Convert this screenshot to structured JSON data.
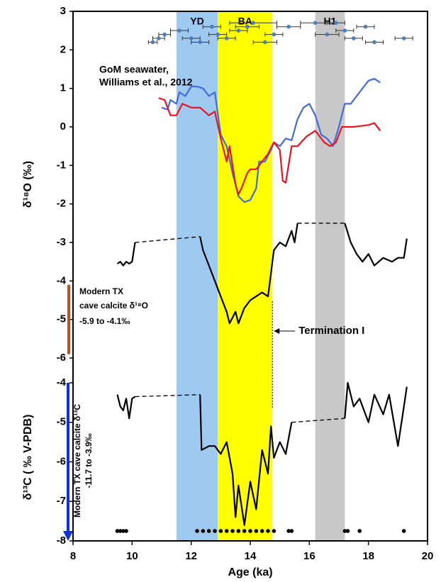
{
  "chart_data": [
    {
      "type": "line",
      "ylabel": "δ¹⁸O (‰)",
      "ylim": [
        -6,
        3
      ],
      "yticks": [
        3,
        2,
        1,
        0,
        -1,
        -2,
        -3,
        -4,
        -5,
        -6
      ],
      "xlim": [
        8,
        20
      ],
      "bands": [
        {
          "label": "YD",
          "start": 11.5,
          "end": 12.9,
          "color": "#9ec9f0"
        },
        {
          "label": "BA",
          "start": 12.9,
          "end": 14.75,
          "color": "#ffff00"
        },
        {
          "label": "H1",
          "start": 16.2,
          "end": 17.2,
          "color": "#c8c8c8"
        }
      ],
      "annotations": [
        "GoM seawater,",
        "Williams et al., 2012"
      ],
      "termination": {
        "label": "Termination I",
        "x": 14.75
      },
      "modern_range": {
        "label": [
          "Modern TX",
          "cave calcite δ¹⁸O",
          "-5.9 to -4.1‰"
        ],
        "values": [
          -5.9,
          -4.1
        ],
        "color": "#c0501e"
      },
      "series": [
        {
          "type": "scatter",
          "color": "#4a7fc0",
          "x": [
            10.7,
            10.9,
            11.1,
            11.6,
            12.0,
            12.3,
            12.7,
            12.9,
            13.2,
            13.6,
            13.9,
            14.1,
            14.5,
            14.8,
            15.3,
            16.2,
            16.6,
            16.9,
            17.2,
            17.5,
            17.9,
            18.2,
            19.2
          ],
          "values": [
            2.2,
            2.3,
            2.4,
            2.5,
            2.3,
            2.2,
            2.6,
            2.4,
            2.3,
            2.5,
            2.6,
            2.7,
            2.2,
            2.4,
            2.6,
            2.7,
            2.4,
            2.7,
            2.5,
            2.3,
            2.6,
            2.2,
            2.3
          ],
          "xerr": [
            0.15,
            0.2,
            0.2,
            0.3,
            0.3,
            0.3,
            0.3,
            0.3,
            0.3,
            0.3,
            0.4,
            0.8,
            0.4,
            0.3,
            0.4,
            0.5,
            0.4,
            0.3,
            0.3,
            0.3,
            0.3,
            0.3,
            0.3
          ]
        },
        {
          "type": "line",
          "color": "#4169e1",
          "x": [
            11.0,
            11.2,
            11.3,
            11.5,
            11.6,
            11.8,
            12.0,
            12.2,
            12.4,
            12.6,
            12.8,
            13.0,
            13.2,
            13.4,
            13.6,
            13.8,
            14.0,
            14.2,
            14.3,
            14.5,
            14.7,
            14.8,
            15.0,
            15.2,
            15.4,
            15.6,
            15.8,
            16.0,
            16.2,
            16.4,
            16.6,
            16.8,
            17.0,
            17.2,
            17.4,
            17.6,
            17.8,
            18.0,
            18.2,
            18.4
          ],
          "values": [
            0.5,
            0.45,
            0.7,
            0.6,
            0.9,
            0.8,
            1.05,
            1.05,
            1.0,
            0.8,
            0.9,
            -0.2,
            -0.5,
            -1.2,
            -1.8,
            -1.95,
            -1.9,
            -1.6,
            -0.9,
            -0.9,
            -0.6,
            -0.4,
            -0.5,
            -0.3,
            -0.35,
            0.2,
            0.5,
            0.6,
            0.3,
            -0.2,
            -0.3,
            -0.5,
            0.0,
            0.6,
            0.6,
            0.8,
            1.0,
            1.2,
            1.25,
            1.15
          ]
        },
        {
          "type": "line",
          "color": "#e8141e",
          "x": [
            10.9,
            11.1,
            11.3,
            11.5,
            11.7,
            12.0,
            12.3,
            12.6,
            12.8,
            13.0,
            13.2,
            13.3,
            13.5,
            13.6,
            13.7,
            13.9,
            14.0,
            14.2,
            14.4,
            14.6,
            14.8,
            15.0,
            15.1,
            15.2,
            15.4,
            15.6,
            15.9,
            16.2,
            16.5,
            16.7,
            16.9,
            17.1,
            17.5,
            18.0,
            18.2,
            18.4
          ],
          "values": [
            0.75,
            0.7,
            0.3,
            0.3,
            0.6,
            0.5,
            0.5,
            0.3,
            0.4,
            -0.3,
            -0.9,
            -0.5,
            -1.5,
            -1.75,
            -1.6,
            -1.2,
            -1.1,
            -1.1,
            -0.9,
            -0.7,
            -0.4,
            -0.6,
            -1.4,
            -1.45,
            -0.5,
            -0.5,
            -0.25,
            -0.1,
            -0.4,
            -0.5,
            -0.4,
            0.0,
            0.0,
            0.05,
            0.1,
            -0.1
          ]
        },
        {
          "type": "line",
          "color": "#000000",
          "connect_gaps": true,
          "x": [
            9.5,
            9.6,
            9.7,
            9.8,
            9.9,
            10.0,
            10.1,
            null,
            12.3,
            12.4,
            12.6,
            12.8,
            13.0,
            13.2,
            13.3,
            13.5,
            13.6,
            13.8,
            14.0,
            14.2,
            14.4,
            14.6,
            14.7,
            14.8,
            15.0,
            15.2,
            15.4,
            15.5,
            15.6,
            null,
            17.2,
            17.4,
            17.6,
            17.8,
            18.0,
            18.2,
            18.5,
            18.8,
            19.0,
            19.2,
            19.3
          ],
          "values": [
            -3.55,
            -3.5,
            -3.6,
            -3.5,
            -3.55,
            -3.5,
            -3.0,
            null,
            -2.85,
            -3.2,
            -3.6,
            -4.0,
            -4.4,
            -4.8,
            -5.1,
            -4.8,
            -5.1,
            -4.7,
            -4.5,
            -4.4,
            -4.3,
            -4.4,
            -3.8,
            -3.2,
            -3.0,
            -3.1,
            -2.7,
            -3.0,
            -2.5,
            null,
            -2.5,
            -3.0,
            -3.3,
            -3.5,
            -3.3,
            -3.6,
            -3.4,
            -3.5,
            -3.4,
            -3.4,
            -2.9
          ]
        }
      ]
    },
    {
      "type": "line",
      "ylabel": "δ¹³C ( ‰ V-PDB)",
      "xlabel": "Age (ka)",
      "ylim": [
        -8,
        -4
      ],
      "yticks": [
        -4,
        -5,
        -6,
        -7,
        -8
      ],
      "xlim": [
        8,
        20
      ],
      "xticks": [
        8,
        10,
        12,
        14,
        16,
        18,
        20
      ],
      "modern_range": {
        "label": [
          "Modern TX  cave calcite δ¹³C",
          "-11.7 to -3.9‰"
        ],
        "values": [
          -8,
          -4
        ],
        "color": "#1030e0"
      },
      "series": [
        {
          "type": "line",
          "color": "#000000",
          "connect_gaps": true,
          "x": [
            9.5,
            9.6,
            9.7,
            9.8,
            9.9,
            10.0,
            10.1,
            null,
            12.3,
            12.35,
            12.6,
            12.8,
            13.0,
            13.2,
            13.4,
            13.5,
            13.6,
            13.8,
            14.0,
            14.2,
            14.4,
            14.6,
            14.7,
            14.8,
            15.0,
            15.2,
            15.4,
            null,
            17.2,
            17.3,
            17.5,
            17.7,
            18.0,
            18.2,
            18.5,
            18.7,
            19.0,
            19.2,
            19.3
          ],
          "values": [
            -4.3,
            -4.6,
            -4.7,
            -4.4,
            -4.9,
            -4.4,
            -4.35,
            null,
            -4.3,
            -5.7,
            -5.6,
            -5.6,
            -5.8,
            -5.5,
            -6.3,
            -7.4,
            -6.6,
            -7.6,
            -6.5,
            -7.2,
            -5.7,
            -6.3,
            -5.1,
            -5.9,
            -5.5,
            -5.8,
            -5.0,
            null,
            -4.9,
            -4.0,
            -4.6,
            -4.4,
            -5.0,
            -4.3,
            -4.8,
            -4.3,
            -5.6,
            -4.6,
            -4.1
          ]
        },
        {
          "type": "scatter",
          "color": "#000000",
          "x": [
            9.5,
            9.6,
            9.7,
            9.8,
            12.2,
            12.4,
            12.6,
            12.8,
            13.0,
            13.2,
            13.4,
            13.6,
            13.8,
            14.0,
            14.2,
            14.4,
            14.6,
            14.8,
            15.3,
            15.4,
            17.2,
            17.3,
            17.7,
            19.2
          ],
          "values": [
            -7.75,
            -7.75,
            -7.75,
            -7.75,
            -7.75,
            -7.75,
            -7.75,
            -7.75,
            -7.75,
            -7.75,
            -7.75,
            -7.75,
            -7.75,
            -7.75,
            -7.75,
            -7.75,
            -7.75,
            -7.75,
            -7.75,
            -7.75,
            -7.75,
            -7.75,
            -7.75,
            -7.75
          ]
        }
      ]
    }
  ]
}
